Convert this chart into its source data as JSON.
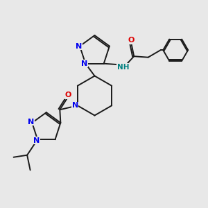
{
  "bg_color": "#e8e8e8",
  "bond_color": "#1a1a1a",
  "n_color": "#0000ee",
  "o_color": "#dd0000",
  "nh_color": "#008080",
  "figsize": [
    3.0,
    3.0
  ],
  "dpi": 100,
  "xlim": [
    0,
    10
  ],
  "ylim": [
    0,
    10
  ],
  "lw": 1.4,
  "fs": 8.0
}
